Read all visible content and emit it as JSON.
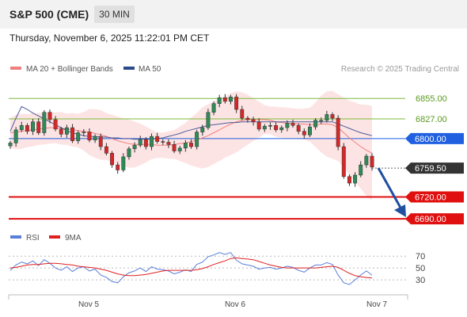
{
  "header": {
    "symbol": "S&P 500 (CME)",
    "timeframe": "30 MIN",
    "timestamp": "Thursday, November 6, 2025 11:22:01 PM CET"
  },
  "legend": {
    "items": [
      {
        "label": "MA 20 + Bollinger Bands",
        "color": "#f08080"
      },
      {
        "label": "MA 50",
        "color": "#2c4a8a"
      }
    ],
    "attribution": "Research © 2025 Trading Central"
  },
  "rsi_legend": {
    "items": [
      {
        "label": "RSI",
        "color": "#5a7fd8"
      },
      {
        "label": "9MA",
        "color": "#e02020"
      }
    ]
  },
  "chart_data": [
    {
      "type": "candlestick",
      "ylim": [
        6675,
        6890
      ],
      "current_price": {
        "value": 6759.5,
        "label": "6759.50"
      },
      "levels": [
        {
          "value": 6855.0,
          "label": "6855.00",
          "kind": "resistance",
          "color": "#7cba3a"
        },
        {
          "value": 6827.0,
          "label": "6827.00",
          "kind": "resistance",
          "color": "#7cba3a"
        },
        {
          "value": 6800.0,
          "label": "6800.00",
          "kind": "pivot",
          "color": "#1f5fe0"
        },
        {
          "value": 6720.0,
          "label": "6720.00",
          "kind": "support",
          "color": "#e01010"
        },
        {
          "value": 6690.0,
          "label": "6690.00",
          "kind": "support",
          "color": "#e01010"
        }
      ],
      "x_ticks": [
        "Nov 5",
        "Nov 6",
        "Nov 7"
      ],
      "close_values": [
        6794,
        6812,
        6818,
        6810,
        6823,
        6808,
        6836,
        6826,
        6813,
        6806,
        6815,
        6797,
        6808,
        6809,
        6798,
        6803,
        6789,
        6780,
        6764,
        6757,
        6775,
        6786,
        6791,
        6799,
        6789,
        6803,
        6796,
        6795,
        6792,
        6783,
        6787,
        6794,
        6789,
        6809,
        6815,
        6836,
        6848,
        6856,
        6851,
        6857,
        6840,
        6828,
        6826,
        6823,
        6813,
        6817,
        6818,
        6812,
        6815,
        6821,
        6818,
        6810,
        6805,
        6816,
        6825,
        6825,
        6833,
        6828,
        6789,
        6748,
        6739,
        6750,
        6764,
        6776,
        6761
      ],
      "ma20": [
        6808,
        6809,
        6810,
        6811,
        6812,
        6813,
        6814,
        6815,
        6815,
        6814,
        6813,
        6812,
        6811,
        6810,
        6809,
        6807,
        6805,
        6803,
        6800,
        6797,
        6795,
        6793,
        6792,
        6792,
        6792,
        6792,
        6791,
        6791,
        6791,
        6792,
        6793,
        6794,
        6796,
        6798,
        6801,
        6804,
        6808,
        6812,
        6816,
        6820,
        6823,
        6825,
        6826,
        6826,
        6826,
        6826,
        6825,
        6823,
        6822,
        6821,
        6821,
        6820,
        6820,
        6819,
        6819,
        6820,
        6820,
        6819,
        6815,
        6808,
        6801,
        6795,
        6789,
        6784,
        6780
      ],
      "ma50": [
        6810,
        6828,
        6844,
        6840,
        6835,
        6831,
        6827,
        6823,
        6819,
        6815,
        6811,
        6808,
        6806,
        6804,
        6803,
        6803,
        6802,
        6802,
        6801,
        6801,
        6800,
        6800,
        6799,
        6799,
        6799,
        6799,
        6800,
        6801,
        6803,
        6805,
        6807,
        6810,
        6812,
        6814,
        6816,
        6818,
        6819,
        6820,
        6821,
        6822,
        6822,
        6823,
        6823,
        6823,
        6823,
        6823,
        6823,
        6823,
        6823,
        6823,
        6823,
        6823,
        6823,
        6823,
        6823,
        6823,
        6823,
        6823,
        6820,
        6817,
        6814,
        6811,
        6808,
        6806,
        6804
      ]
    },
    {
      "type": "line",
      "ylim": [
        10,
        85
      ],
      "y_ticks": [
        30,
        50,
        70
      ],
      "series": [
        {
          "name": "RSI",
          "color": "#5a7fd8",
          "values": [
            46,
            55,
            60,
            57,
            62,
            54,
            64,
            58,
            50,
            46,
            52,
            44,
            50,
            52,
            45,
            48,
            38,
            34,
            27,
            25,
            35,
            42,
            45,
            50,
            44,
            52,
            48,
            47,
            45,
            40,
            43,
            47,
            44,
            56,
            60,
            69,
            72,
            76,
            73,
            76,
            63,
            57,
            55,
            53,
            48,
            50,
            51,
            48,
            50,
            53,
            51,
            46,
            43,
            50,
            55,
            55,
            59,
            56,
            38,
            25,
            22,
            30,
            38,
            45,
            38
          ]
        },
        {
          "name": "9MA",
          "color": "#e02020",
          "values": [
            50,
            51,
            53,
            55,
            56,
            56,
            57,
            58,
            58,
            57,
            56,
            55,
            53,
            52,
            51,
            50,
            48,
            46,
            43,
            40,
            38,
            37,
            37,
            38,
            39,
            41,
            43,
            45,
            46,
            46,
            46,
            46,
            46,
            47,
            49,
            52,
            56,
            59,
            62,
            66,
            67,
            66,
            65,
            64,
            61,
            58,
            55,
            53,
            51,
            50,
            50,
            50,
            50,
            50,
            50,
            51,
            52,
            53,
            51,
            46,
            41,
            37,
            35,
            34,
            33
          ]
        }
      ]
    }
  ]
}
